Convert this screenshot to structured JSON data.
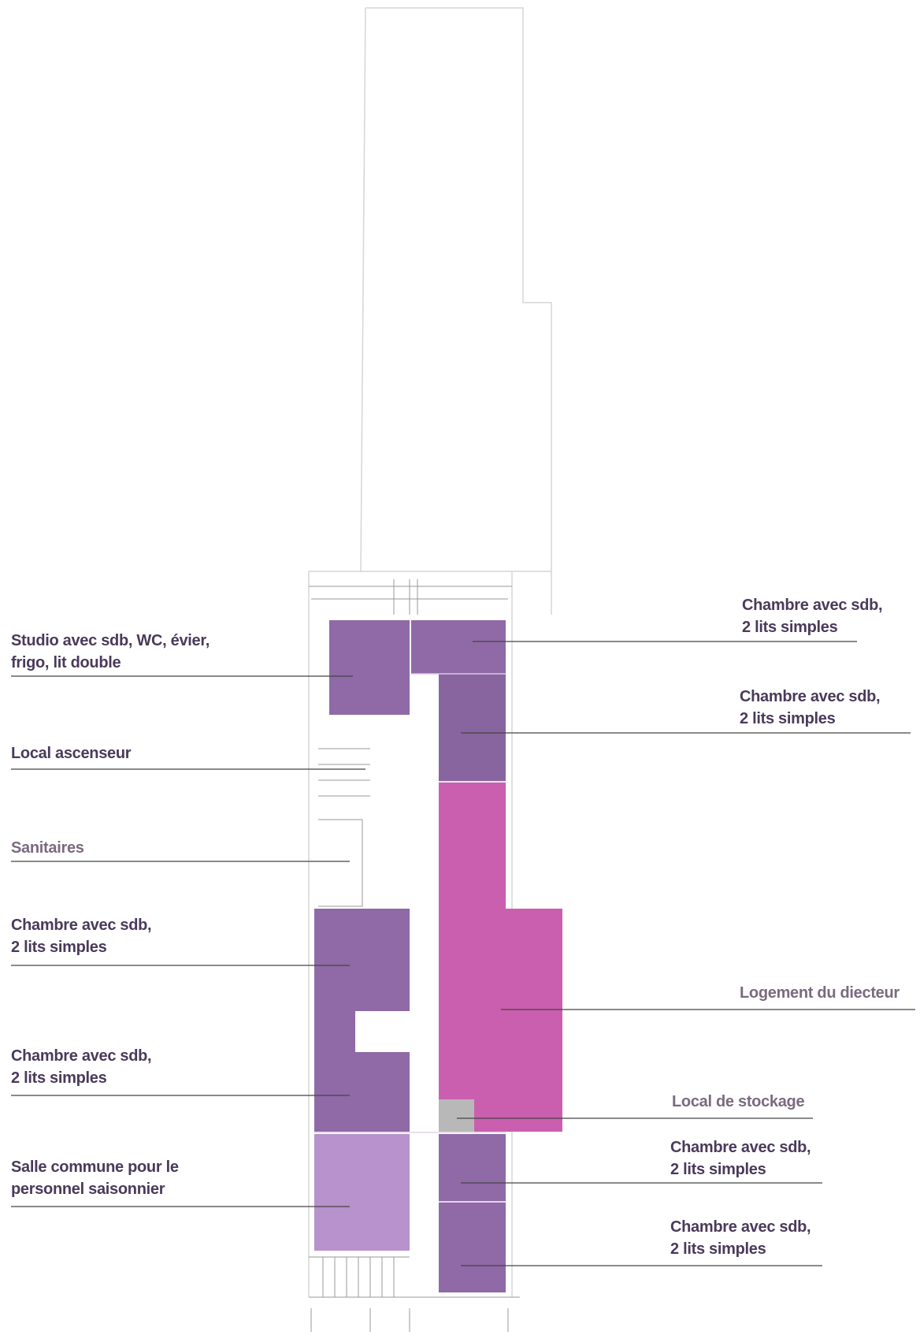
{
  "labels": {
    "studio": {
      "line1": "Studio  avec  sdb,  WC,  évier,",
      "line2": "frigo, lit double"
    },
    "ascenseur": {
      "line1": "Local ascenseur"
    },
    "sanitaires": {
      "line1": "Sanitaires"
    },
    "chambre_left_1": {
      "line1": "Chambre avec sdb,",
      "line2": "2 lits simples"
    },
    "chambre_left_2": {
      "line1": "Chambre avec sdb,",
      "line2": "2 lits simples"
    },
    "salle_commune": {
      "line1": "Salle commune pour le",
      "line2": "personnel saisonnier"
    },
    "chambre_right_1": {
      "line1": "Chambre avec sdb,",
      "line2": "2 lits simples"
    },
    "chambre_right_2": {
      "line1": "Chambre avec sdb,",
      "line2": "2 lits simples"
    },
    "logement": {
      "line1": "Logement du diecteur"
    },
    "stockage": {
      "line1": "Local de stockage"
    },
    "chambre_right_3": {
      "line1": "Chambre avec sdb,",
      "line2": "2 lits simples"
    },
    "chambre_right_4": {
      "line1": "Chambre avec sdb,",
      "line2": "2 lits simples"
    }
  },
  "colors": {
    "room_purple": "#8f6aa6",
    "room_purple_dark": "#88659f",
    "logement_magenta": "#c95fae",
    "salle_lilac": "#b792cc",
    "stockage_grey": "#b8b8b8",
    "leader_line": "#444444",
    "outline": "#c8c8c8"
  }
}
